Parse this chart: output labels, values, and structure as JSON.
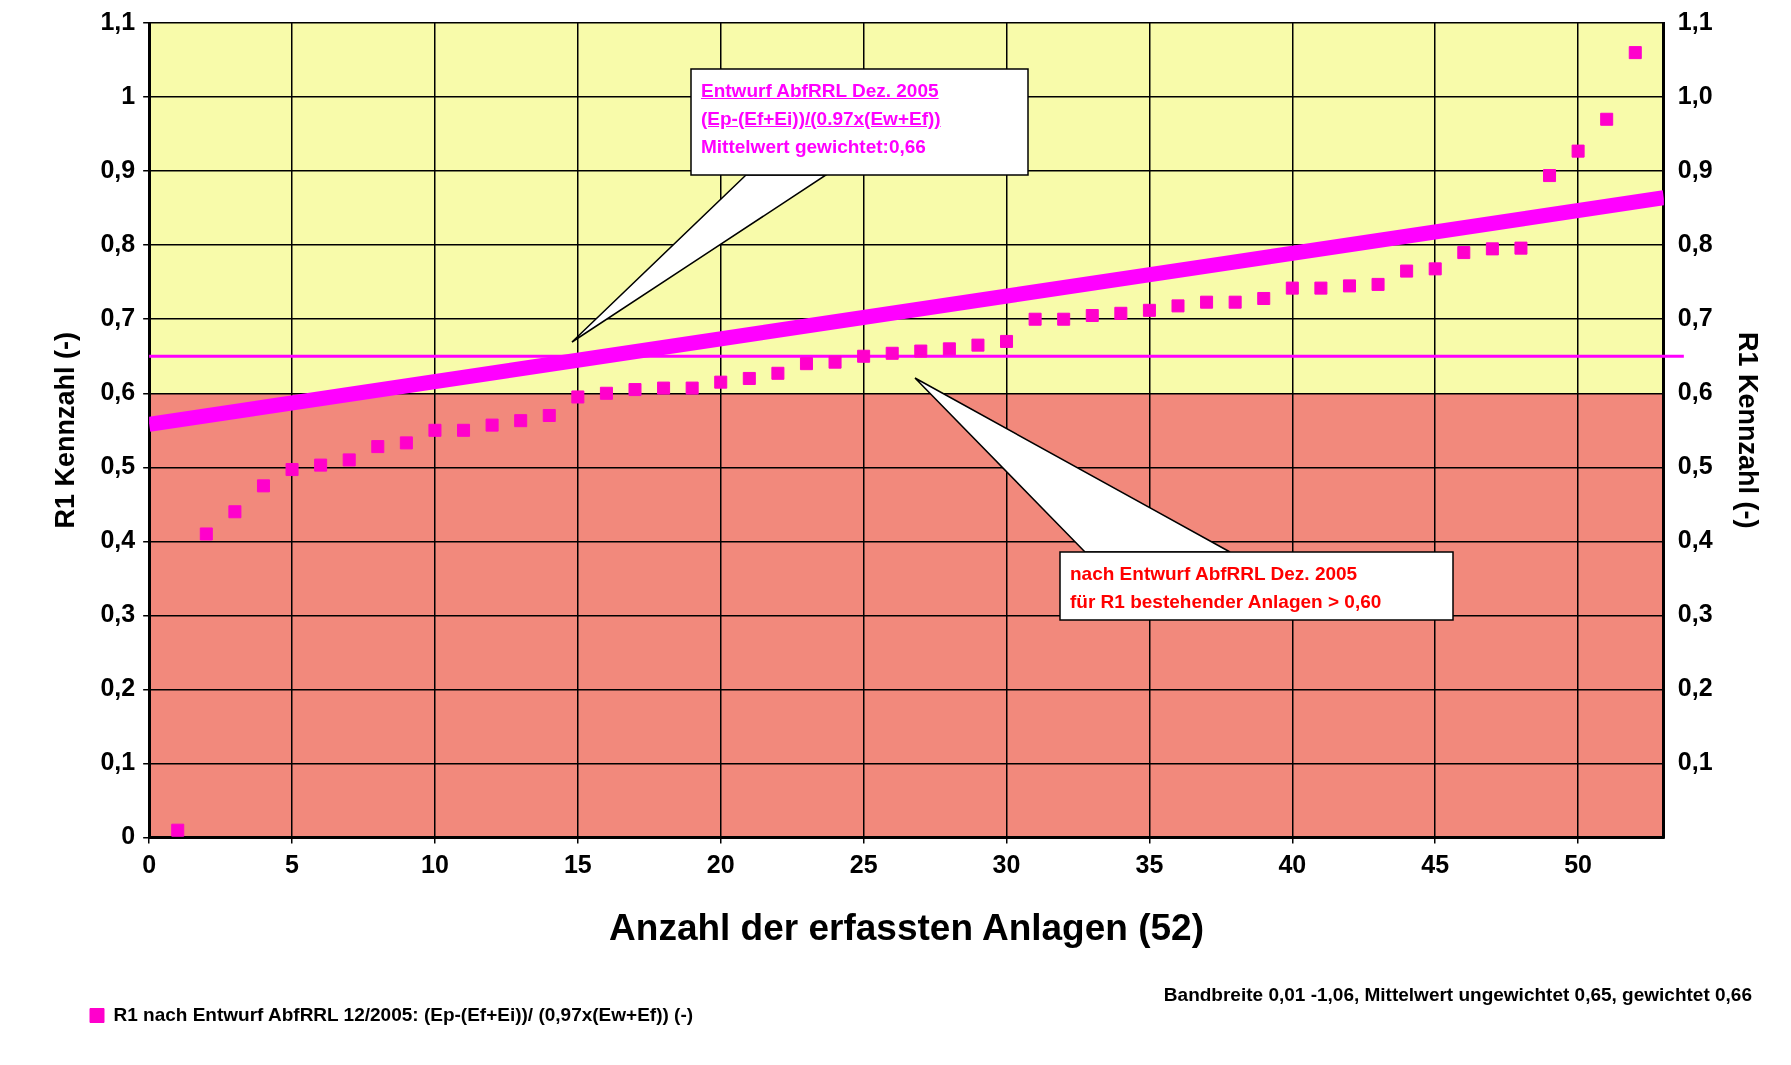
{
  "chart_data": {
    "type": "scatter",
    "xlabel": "Anzahl der erfassten Anlagen (52)",
    "ylabel": "R1 Kennzahl (-)",
    "y2label": "R1 Kennzahl (-)",
    "xlim": [
      0,
      53
    ],
    "xticks": [
      0,
      5,
      10,
      15,
      20,
      25,
      30,
      35,
      40,
      45,
      50
    ],
    "ylim": [
      0,
      1.1
    ],
    "yticks": [
      {
        "value": 0,
        "label": "0"
      },
      {
        "value": 0.1,
        "label": "0,1"
      },
      {
        "value": 0.2,
        "label": "0,2"
      },
      {
        "value": 0.3,
        "label": "0,3"
      },
      {
        "value": 0.4,
        "label": "0,4"
      },
      {
        "value": 0.5,
        "label": "0,5"
      },
      {
        "value": 0.6,
        "label": "0,6"
      },
      {
        "value": 0.7,
        "label": "0,7"
      },
      {
        "value": 0.8,
        "label": "0,8"
      },
      {
        "value": 0.9,
        "label": "0,9"
      },
      {
        "value": 1,
        "label": "1"
      },
      {
        "value": 1.1,
        "label": "1,1"
      }
    ],
    "y2lim": [
      0,
      1.1
    ],
    "y2ticks": [
      {
        "value": 0.1,
        "label": "0,1"
      },
      {
        "value": 0.2,
        "label": "0,2"
      },
      {
        "value": 0.3,
        "label": "0,3"
      },
      {
        "value": 0.4,
        "label": "0,4"
      },
      {
        "value": 0.5,
        "label": "0,5"
      },
      {
        "value": 0.6,
        "label": "0,6"
      },
      {
        "value": 0.7,
        "label": "0,7"
      },
      {
        "value": 0.8,
        "label": "0,8"
      },
      {
        "value": 0.9,
        "label": "0,9"
      },
      {
        "value": 1,
        "label": "1,0"
      },
      {
        "value": 1.1,
        "label": "1,1"
      }
    ],
    "grid": true,
    "legend": "bottom left",
    "bands": [
      {
        "axis": "y",
        "from": 0,
        "to": 0.6,
        "color": "#f2897c"
      },
      {
        "axis": "y",
        "from": 0.6,
        "to": 1.1,
        "color": "#f8fbaa"
      }
    ],
    "ref_lines": [
      {
        "axis": "y",
        "value": 0.65,
        "color": "#ff00ff"
      }
    ],
    "series": [
      {
        "name": "R1 nach Entwurf AbfRRL 12/2005: (Ep-(Ef+Ei))/ (0,97x(Ew+Ef)) (-)",
        "type": "scatter",
        "marker": "square",
        "color": "#ff00cc",
        "x": [
          1,
          2,
          3,
          4,
          5,
          6,
          7,
          8,
          9,
          10,
          11,
          12,
          13,
          14,
          15,
          16,
          17,
          18,
          19,
          20,
          21,
          22,
          23,
          24,
          25,
          26,
          27,
          28,
          29,
          30,
          31,
          32,
          33,
          34,
          35,
          36,
          37,
          38,
          39,
          40,
          41,
          42,
          43,
          44,
          45,
          46,
          47,
          48,
          49,
          50,
          51,
          52
        ],
        "values": [
          0.01,
          0.41,
          0.44,
          0.475,
          0.497,
          0.503,
          0.51,
          0.528,
          0.533,
          0.55,
          0.55,
          0.557,
          0.563,
          0.57,
          0.595,
          0.6,
          0.605,
          0.607,
          0.607,
          0.615,
          0.62,
          0.627,
          0.64,
          0.642,
          0.65,
          0.654,
          0.657,
          0.66,
          0.665,
          0.67,
          0.7,
          0.7,
          0.705,
          0.708,
          0.712,
          0.718,
          0.723,
          0.723,
          0.728,
          0.742,
          0.742,
          0.745,
          0.747,
          0.765,
          0.768,
          0.79,
          0.795,
          0.796,
          0.894,
          0.927,
          0.97,
          1.06
        ]
      },
      {
        "type": "line",
        "marker": "none",
        "color": "#ff00ff",
        "x": [
          0,
          53
        ],
        "values": [
          0.558,
          0.864
        ]
      }
    ],
    "annotations": [
      "Entwurf AbfRRL Dez. 2005 \n(Ep-(Ef+Ei))/(0.97x(Ew+Ef))\nMittelwert gewichtet:0,66",
      "nach Entwurf AbfRRL Dez. 2005\nfür R1 bestehender Anlagen > 0,60",
      "Bandbreite 0,01 -1,06,  Mittelwert ungewichtet 0,65,  gewichtet 0,66"
    ]
  }
}
